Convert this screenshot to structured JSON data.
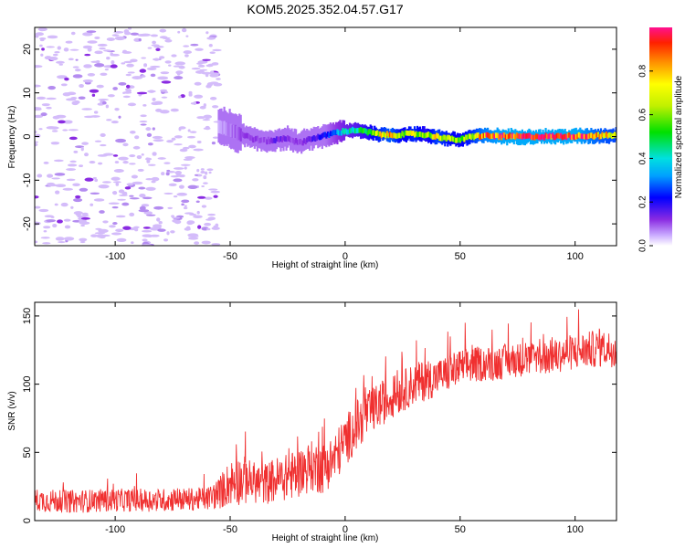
{
  "chart_data": [
    {
      "type": "heatmap",
      "title": "KOM5.2025.352.04.57.G17",
      "xlabel": "Height of straight line (km)",
      "ylabel": "Frequency (Hz)",
      "xlim": [
        -135,
        118
      ],
      "ylim": [
        -25,
        25
      ],
      "x_ticks": [
        -100,
        -50,
        0,
        50,
        100
      ],
      "x_tick_labels": [
        "-100",
        "-50",
        "0",
        "50",
        "100"
      ],
      "y_ticks": [
        -20,
        -10,
        0,
        10,
        20
      ],
      "y_tick_labels": [
        "-20",
        "-10",
        "0",
        "10",
        "20"
      ],
      "noise_region_x": [
        -135,
        -55
      ],
      "ridge": {
        "description": "frequency of maximum normalized spectral amplitude vs height",
        "x": [
          -55,
          -50,
          -45,
          -40,
          -35,
          -30,
          -25,
          -20,
          -15,
          -10,
          -5,
          0,
          5,
          10,
          15,
          20,
          25,
          30,
          35,
          40,
          45,
          50,
          55,
          60,
          70,
          80,
          90,
          100,
          110,
          118
        ],
        "freq": [
          2.5,
          1.5,
          0.5,
          -0.5,
          -1.0,
          -0.8,
          -0.3,
          -1.5,
          -0.5,
          0.0,
          0.8,
          1.2,
          1.5,
          1.0,
          0.5,
          0.3,
          0.5,
          0.6,
          0.4,
          0.0,
          -0.5,
          -0.8,
          0.0,
          0.2,
          0.0,
          0.0,
          0.0,
          0.1,
          0.2,
          0.3
        ],
        "amplitude": [
          0.05,
          0.08,
          0.1,
          0.12,
          0.1,
          0.15,
          0.12,
          0.1,
          0.15,
          0.2,
          0.3,
          0.4,
          0.45,
          0.55,
          0.7,
          0.8,
          0.6,
          0.7,
          0.55,
          0.75,
          0.65,
          0.6,
          0.7,
          0.85,
          0.95,
          0.95,
          0.95,
          0.95,
          0.8,
          0.75
        ]
      },
      "colorbar": {
        "label": "Normalized spectral amplitude",
        "range": [
          0.0,
          1.0
        ],
        "ticks": [
          0.0,
          0.2,
          0.4,
          0.6,
          0.8
        ],
        "tick_labels": [
          "0.0",
          "0.2",
          "0.4",
          "0.6",
          "0.8"
        ]
      }
    },
    {
      "type": "line",
      "xlabel": "Height of straight line (km)",
      "ylabel": "SNR (v/v)",
      "xlim": [
        -135,
        118
      ],
      "ylim": [
        0,
        160
      ],
      "x_ticks": [
        -100,
        -50,
        0,
        50,
        100
      ],
      "x_tick_labels": [
        "-100",
        "-50",
        "0",
        "50",
        "100"
      ],
      "y_ticks": [
        0,
        50,
        100,
        150
      ],
      "y_tick_labels": [
        "0",
        "50",
        "100",
        "150"
      ],
      "color": "#f03030",
      "series": [
        {
          "name": "SNR",
          "x": [
            -135,
            -120,
            -100,
            -80,
            -60,
            -55,
            -50,
            -45,
            -40,
            -35,
            -30,
            -25,
            -20,
            -15,
            -10,
            -5,
            0,
            5,
            10,
            15,
            20,
            25,
            30,
            35,
            40,
            45,
            50,
            55,
            60,
            65,
            70,
            75,
            80,
            85,
            90,
            95,
            100,
            105,
            110,
            118
          ],
          "mean": [
            15,
            14,
            15,
            15,
            16,
            20,
            28,
            30,
            28,
            27,
            30,
            32,
            35,
            40,
            38,
            45,
            58,
            70,
            78,
            85,
            90,
            95,
            100,
            103,
            105,
            108,
            112,
            114,
            115,
            115,
            117,
            118,
            118,
            119,
            120,
            122,
            124,
            125,
            126,
            126
          ],
          "spread": [
            10,
            10,
            10,
            10,
            10,
            14,
            20,
            22,
            18,
            18,
            20,
            20,
            22,
            22,
            22,
            22,
            22,
            22,
            20,
            20,
            18,
            18,
            18,
            18,
            16,
            16,
            16,
            16,
            15,
            15,
            15,
            15,
            15,
            15,
            15,
            15,
            16,
            16,
            16,
            16
          ]
        }
      ]
    }
  ]
}
